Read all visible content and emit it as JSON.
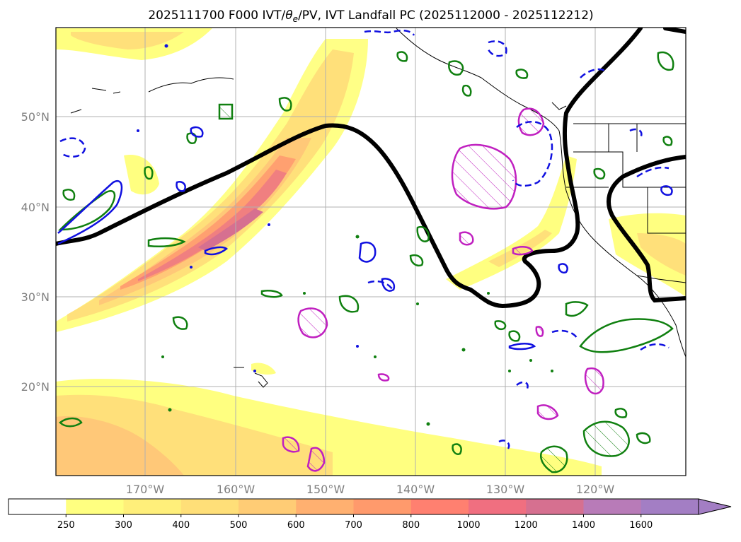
{
  "title": {
    "prefix": "2025111700 F000 IVT/",
    "theta": "θ",
    "sub": "e",
    "suffix": "/PV, IVT Landfall PC (2025112000 - 2025112212)"
  },
  "map": {
    "lat_labels": [
      "50°N",
      "40°N",
      "30°N",
      "20°N"
    ],
    "lon_labels": [
      "170°W",
      "160°W",
      "150°W",
      "140°W",
      "130°W",
      "120°W"
    ],
    "lat_range": [
      10,
      60
    ],
    "lon_range": [
      -180,
      -110
    ]
  },
  "colorbar": {
    "ticks": [
      "250",
      "300",
      "400",
      "500",
      "600",
      "700",
      "800",
      "1000",
      "1200",
      "1400",
      "1600"
    ],
    "colors": [
      "#ffffff",
      "#ffff80",
      "#ffef7a",
      "#ffdf78",
      "#ffcc75",
      "#ffb070",
      "#ff9a6c",
      "#ff8070",
      "#f06f80",
      "#d67090",
      "#b87bb8",
      "#a37ec4"
    ]
  }
}
